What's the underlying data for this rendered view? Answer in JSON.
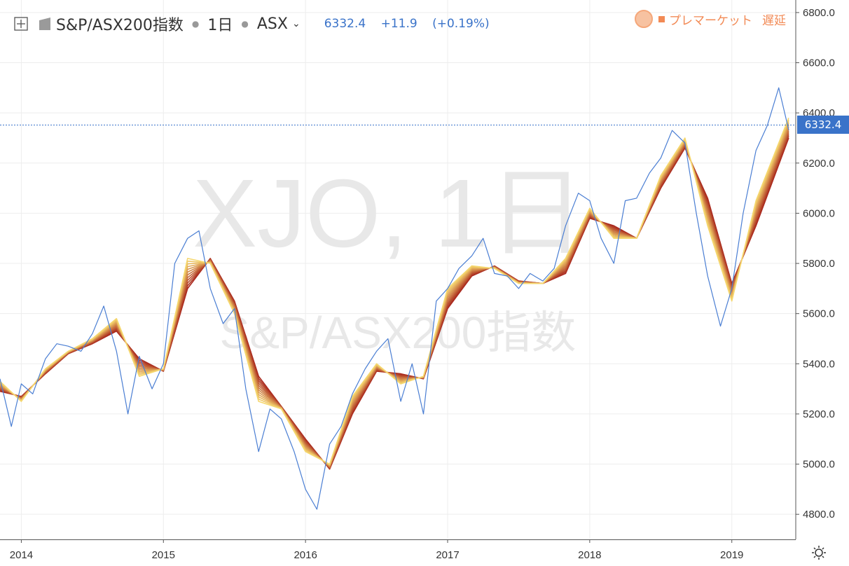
{
  "legend": {
    "symbol": "S&P/ASX200指数",
    "interval": "1日",
    "exchange": "ASX",
    "last": "6332.4",
    "change": "+11.9",
    "change_pct": "(+0.19%)"
  },
  "premarket": {
    "label": "プレマーケット",
    "delay": "遅延"
  },
  "watermark": {
    "ticker": "XJO, 1日",
    "name": "S&P/ASX200指数"
  },
  "price_tag": "6332.4",
  "colors": {
    "price_line": "#4a7ed3",
    "ribbon_fast": "#f5d76e",
    "ribbon_slow": "#a8261c",
    "price_tag_bg": "#3a73c9",
    "premarket": "#f28a55"
  },
  "icons": [
    "expand-icon",
    "logo-icon",
    "chevron-down-icon",
    "premarket-circle-icon",
    "settings-icon"
  ],
  "chart_data": {
    "type": "line",
    "xlabel": "",
    "ylabel": "",
    "ylim": [
      4700,
      6850
    ],
    "x_ticks": [
      "2014",
      "2015",
      "2016",
      "2017",
      "2018",
      "2019"
    ],
    "x_tick_dates": [
      2014.0,
      2015.0,
      2016.0,
      2017.0,
      2018.0,
      2019.0
    ],
    "y_ticks": [
      "4800.0",
      "5000.0",
      "5200.0",
      "5400.0",
      "5600.0",
      "5800.0",
      "6000.0",
      "6200.0",
      "6400.0",
      "6600.0",
      "6800.0"
    ],
    "last_value": 6332.4,
    "grid": true,
    "series": [
      {
        "x": [
          2013.85,
          2013.93,
          2014.0,
          2014.08,
          2014.17,
          2014.25,
          2014.33,
          2014.42,
          2014.5,
          2014.58,
          2014.67,
          2014.75,
          2014.83,
          2014.92,
          2015.0,
          2015.08,
          2015.17,
          2015.25,
          2015.33,
          2015.42,
          2015.5,
          2015.58,
          2015.67,
          2015.75,
          2015.83,
          2015.92,
          2016.0,
          2016.08,
          2016.17,
          2016.25,
          2016.33,
          2016.42,
          2016.5,
          2016.58,
          2016.67,
          2016.75,
          2016.83,
          2016.92,
          2017.0,
          2017.08,
          2017.17,
          2017.25,
          2017.33,
          2017.42,
          2017.5,
          2017.58,
          2017.67,
          2017.75,
          2017.83,
          2017.92,
          2018.0,
          2018.08,
          2018.17,
          2018.25,
          2018.33,
          2018.42,
          2018.5,
          2018.58,
          2018.67,
          2018.75,
          2018.83,
          2018.92,
          2019.0,
          2019.08,
          2019.17,
          2019.25,
          2019.33,
          2019.4
        ],
        "y": [
          5340,
          5150,
          5320,
          5280,
          5420,
          5480,
          5470,
          5450,
          5520,
          5630,
          5450,
          5200,
          5430,
          5300,
          5400,
          5800,
          5900,
          5930,
          5700,
          5560,
          5620,
          5300,
          5050,
          5220,
          5180,
          5050,
          4900,
          4820,
          5080,
          5150,
          5280,
          5380,
          5450,
          5500,
          5250,
          5400,
          5200,
          5650,
          5700,
          5780,
          5830,
          5900,
          5760,
          5750,
          5700,
          5760,
          5730,
          5780,
          5950,
          6080,
          6050,
          5900,
          5800,
          6050,
          6060,
          6160,
          6220,
          6330,
          6280,
          6000,
          5750,
          5550,
          5700,
          6000,
          6250,
          6350,
          6500,
          6332
        ]
      },
      {
        "name": "",
        "x": [
          2013.85,
          2014.0,
          2014.17,
          2014.33,
          2014.5,
          2014.67,
          2014.83,
          2015.0,
          2015.17,
          2015.33,
          2015.5,
          2015.67,
          2015.83,
          2016.0,
          2016.17,
          2016.33,
          2016.5,
          2016.67,
          2016.83,
          2017.0,
          2017.17,
          2017.33,
          2017.5,
          2017.67,
          2017.83,
          2018.0,
          2018.17,
          2018.33,
          2018.5,
          2018.67,
          2018.83,
          2019.0,
          2019.17,
          2019.4
        ],
        "y": [
          5330,
          5250,
          5380,
          5450,
          5500,
          5580,
          5350,
          5380,
          5820,
          5800,
          5600,
          5250,
          5220,
          5050,
          5000,
          5270,
          5400,
          5320,
          5350,
          5700,
          5790,
          5780,
          5720,
          5720,
          5820,
          6020,
          5900,
          5900,
          6150,
          6300,
          5950,
          5650,
          6050,
          6380
        ]
      },
      {
        "name": "",
        "x": [
          2013.85,
          2014.0,
          2014.17,
          2014.33,
          2014.5,
          2014.67,
          2014.83,
          2015.0,
          2015.17,
          2015.33,
          2015.5,
          2015.67,
          2015.83,
          2016.0,
          2016.17,
          2016.33,
          2016.5,
          2016.67,
          2016.83,
          2017.0,
          2017.17,
          2017.33,
          2017.5,
          2017.67,
          2017.83,
          2018.0,
          2018.17,
          2018.33,
          2018.5,
          2018.67,
          2018.83,
          2019.0,
          2019.17,
          2019.4
        ],
        "y": [
          5290,
          5270,
          5360,
          5440,
          5480,
          5530,
          5420,
          5370,
          5700,
          5820,
          5650,
          5350,
          5230,
          5100,
          4980,
          5200,
          5370,
          5360,
          5340,
          5620,
          5750,
          5790,
          5730,
          5720,
          5760,
          5980,
          5950,
          5900,
          6100,
          6260,
          6060,
          5720,
          5950,
          6300
        ]
      }
    ]
  }
}
